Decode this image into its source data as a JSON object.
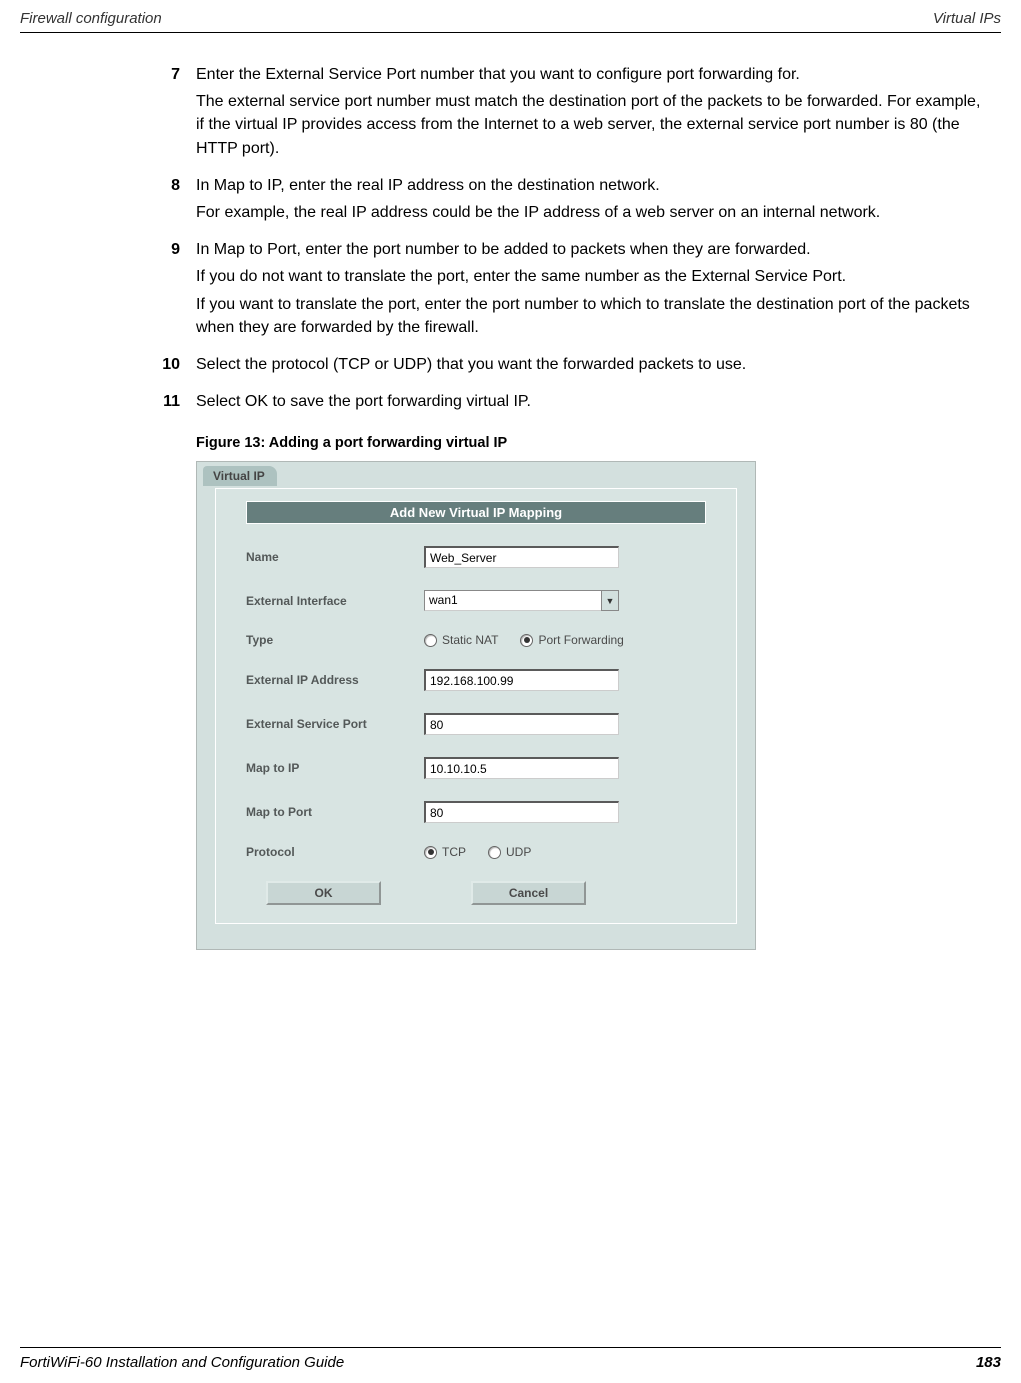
{
  "header": {
    "left": "Firewall configuration",
    "right": "Virtual IPs"
  },
  "steps": [
    {
      "num": "7",
      "paras": [
        "Enter the External Service Port number that you want to configure port forwarding for.",
        "The external service port number must match the destination port of the packets to be forwarded. For example, if the virtual IP provides access from the Internet to a web server, the external service port number is 80 (the HTTP port)."
      ]
    },
    {
      "num": "8",
      "paras": [
        "In Map to IP, enter the real IP address on the destination network.",
        "For example, the real IP address could be the IP address of a web server on an internal network."
      ]
    },
    {
      "num": "9",
      "paras": [
        "In Map to Port, enter the port number to be added to packets when they are forwarded.",
        "If you do not want to translate the port, enter the same number as the External Service Port.",
        "If you want to translate the port, enter the port number to which to translate the destination port of the packets when they are forwarded by the firewall."
      ]
    },
    {
      "num": "10",
      "paras": [
        "Select the protocol (TCP or UDP) that you want the forwarded packets to use."
      ]
    },
    {
      "num": "11",
      "paras": [
        "Select OK to save the port forwarding virtual IP."
      ]
    }
  ],
  "figure_caption": "Figure 13: Adding a port forwarding virtual IP",
  "form": {
    "tab_label": "Virtual IP",
    "title_bar": "Add New Virtual IP Mapping",
    "name_label": "Name",
    "name_value": "Web_Server",
    "ext_interface_label": "External Interface",
    "ext_interface_value": "wan1",
    "type_label": "Type",
    "type_static": "Static NAT",
    "type_portfwd": "Port Forwarding",
    "ext_ip_label": "External IP Address",
    "ext_ip_value": "192.168.100.99",
    "ext_port_label": "External Service Port",
    "ext_port_value": "80",
    "map_ip_label": "Map to IP",
    "map_ip_value": "10.10.10.5",
    "map_port_label": "Map to Port",
    "map_port_value": "80",
    "protocol_label": "Protocol",
    "protocol_tcp": "TCP",
    "protocol_udp": "UDP",
    "ok_button": "OK",
    "cancel_button": "Cancel"
  },
  "footer": {
    "left": "FortiWiFi-60 Installation and Configuration Guide",
    "page": "183"
  }
}
